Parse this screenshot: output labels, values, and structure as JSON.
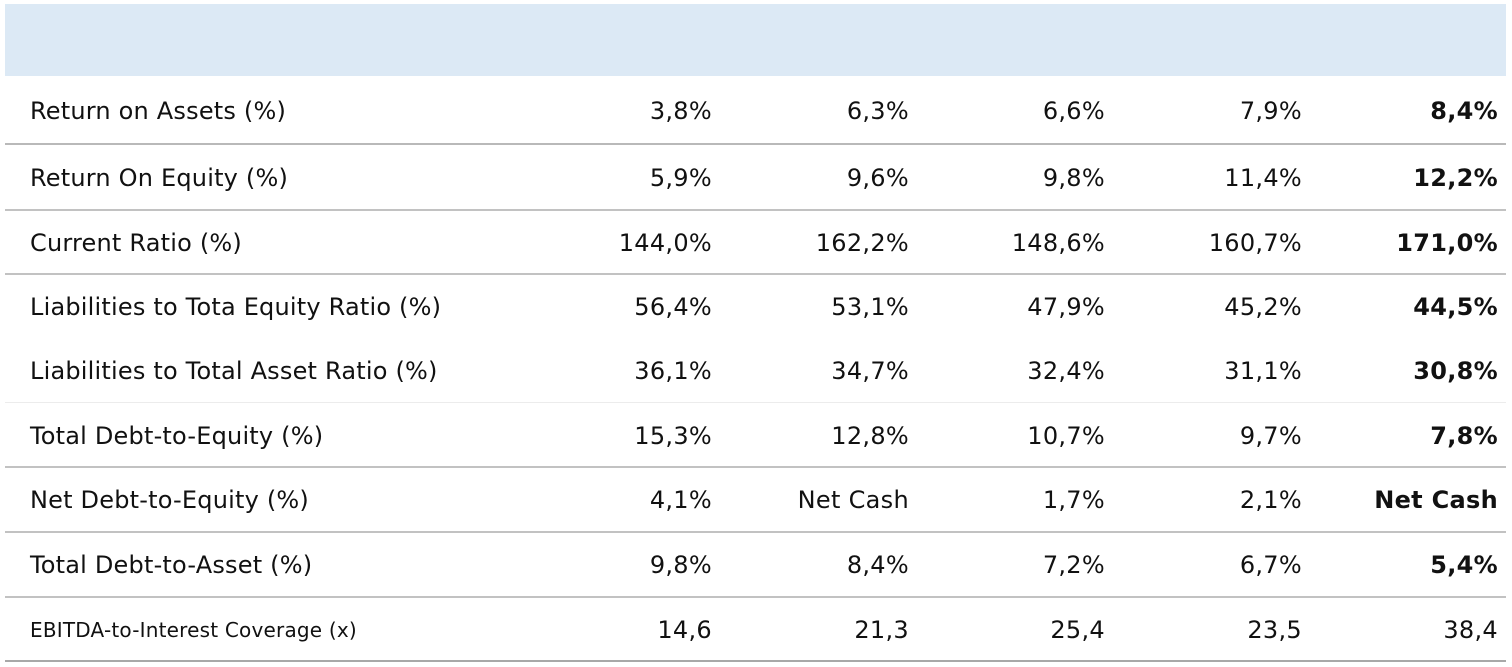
{
  "table": {
    "rows": [
      {
        "label": "Return on Assets (%)",
        "values": [
          "3,8%",
          "6,3%",
          "6,6%",
          "7,9%",
          "8,4%"
        ]
      },
      {
        "label": "Return On Equity (%)",
        "values": [
          "5,9%",
          "9,6%",
          "9,8%",
          "11,4%",
          "12,2%"
        ]
      },
      {
        "label": "Current Ratio (%)",
        "values": [
          "144,0%",
          "162,2%",
          "148,6%",
          "160,7%",
          "171,0%"
        ]
      },
      {
        "label": "Liabilities to Tota Equity Ratio (%)",
        "values": [
          "56,4%",
          "53,1%",
          "47,9%",
          "45,2%",
          "44,5%"
        ]
      },
      {
        "label": "Liabilities to Total Asset Ratio (%)",
        "values": [
          "36,1%",
          "34,7%",
          "32,4%",
          "31,1%",
          "30,8%"
        ]
      },
      {
        "label": "Total Debt-to-Equity (%)",
        "values": [
          "15,3%",
          "12,8%",
          "10,7%",
          "9,7%",
          "7,8%"
        ]
      },
      {
        "label": "Net Debt-to-Equity (%)",
        "values": [
          "4,1%",
          "Net Cash",
          "1,7%",
          "2,1%",
          "Net Cash"
        ]
      },
      {
        "label": "Total Debt-to-Asset (%)",
        "values": [
          "9,8%",
          "8,4%",
          "7,2%",
          "6,7%",
          "5,4%"
        ]
      },
      {
        "label": "EBITDA-to-Interest Coverage (x)",
        "values": [
          "14,6",
          "21,3",
          "25,4",
          "23,5",
          "38,4"
        ]
      }
    ]
  },
  "colors": {
    "header_band": "#dce9f5",
    "text": "#111111",
    "separator": "#c2c2c2"
  }
}
